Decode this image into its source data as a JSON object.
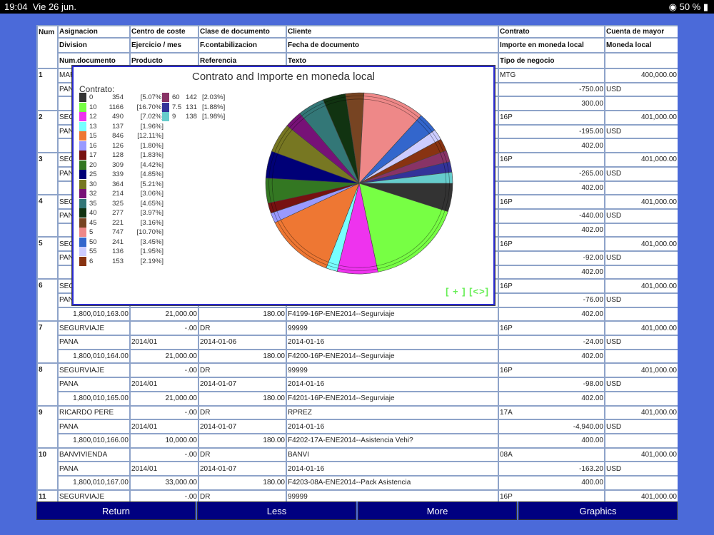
{
  "status": {
    "time": "19:04",
    "date": "Vie 26 jun.",
    "battery": "50 %"
  },
  "headers": [
    [
      "Num",
      "Asignacion",
      "Centro de coste",
      "Clase de documento",
      "Cliente",
      "Contrato",
      "Cuenta de mayor"
    ],
    [
      "",
      "Division",
      "Ejercicio / mes",
      "F.contabilizacion",
      "Fecha de documento",
      "Importe en moneda local",
      "Moneda local"
    ],
    [
      "",
      "Num.documento",
      "Producto",
      "Referencia",
      "Texto",
      "Tipo de negocio",
      ""
    ]
  ],
  "records": [
    {
      "num": "1",
      "rows": [
        [
          "MAR",
          "",
          "",
          "",
          "MTG",
          "400,000.00"
        ],
        [
          "PAN",
          "",
          "",
          "",
          "-750.00",
          "USD"
        ],
        [
          "",
          "",
          "",
          "",
          "300.00",
          ""
        ]
      ]
    },
    {
      "num": "2",
      "rows": [
        [
          "SEG",
          "",
          "",
          "",
          "16P",
          "401,000.00"
        ],
        [
          "PAN",
          "",
          "",
          "",
          "-195.00",
          "USD"
        ],
        [
          "",
          "",
          "",
          "",
          "402.00",
          ""
        ]
      ]
    },
    {
      "num": "3",
      "rows": [
        [
          "SEG",
          "",
          "",
          "",
          "16P",
          "401,000.00"
        ],
        [
          "PAN",
          "",
          "",
          "",
          "-265.00",
          "USD"
        ],
        [
          "",
          "",
          "",
          "",
          "402.00",
          ""
        ]
      ]
    },
    {
      "num": "4",
      "rows": [
        [
          "SEG",
          "",
          "",
          "",
          "16P",
          "401,000.00"
        ],
        [
          "PAN",
          "",
          "",
          "",
          "-440.00",
          "USD"
        ],
        [
          "",
          "",
          "",
          "",
          "402.00",
          ""
        ]
      ]
    },
    {
      "num": "5",
      "rows": [
        [
          "SEG",
          "",
          "",
          "",
          "16P",
          "401,000.00"
        ],
        [
          "PAN",
          "",
          "",
          "",
          "-92.00",
          "USD"
        ],
        [
          "",
          "",
          "",
          "",
          "402.00",
          ""
        ]
      ]
    },
    {
      "num": "6",
      "rows": [
        [
          "SEG",
          "",
          "",
          "",
          "16P",
          "401,000.00"
        ],
        [
          "PAN",
          "",
          "",
          "",
          "-76.00",
          "USD"
        ],
        [
          "1,800,010,163.00",
          "21,000.00",
          "180.00",
          "F4199-16P-ENE2014--Segurviaje",
          "402.00",
          ""
        ]
      ]
    },
    {
      "num": "7",
      "rows": [
        [
          "SEGURVIAJE",
          "-.00",
          "DR",
          "99999",
          "16P",
          "401,000.00"
        ],
        [
          "PANA",
          "2014/01",
          "2014-01-06",
          "2014-01-16",
          "-24.00",
          "USD"
        ],
        [
          "1,800,010,164.00",
          "21,000.00",
          "180.00",
          "F4200-16P-ENE2014--Segurviaje",
          "402.00",
          ""
        ]
      ]
    },
    {
      "num": "8",
      "rows": [
        [
          "SEGURVIAJE",
          "-.00",
          "DR",
          "99999",
          "16P",
          "401,000.00"
        ],
        [
          "PANA",
          "2014/01",
          "2014-01-07",
          "2014-01-16",
          "-98.00",
          "USD"
        ],
        [
          "1,800,010,165.00",
          "21,000.00",
          "180.00",
          "F4201-16P-ENE2014--Segurviaje",
          "402.00",
          ""
        ]
      ]
    },
    {
      "num": "9",
      "rows": [
        [
          "RICARDO PERE",
          "-.00",
          "DR",
          "RPREZ",
          "17A",
          "401,000.00"
        ],
        [
          "PANA",
          "2014/01",
          "2014-01-07",
          "2014-01-16",
          "-4,940.00",
          "USD"
        ],
        [
          "1,800,010,166.00",
          "10,000.00",
          "180.00",
          "F4202-17A-ENE2014--Asistencia Vehi?",
          "400.00",
          ""
        ]
      ]
    },
    {
      "num": "10",
      "rows": [
        [
          "BANVIVIENDA",
          "-.00",
          "DR",
          "BANVI",
          "08A",
          "401,000.00"
        ],
        [
          "PANA",
          "2014/01",
          "2014-01-07",
          "2014-01-16",
          "-163.20",
          "USD"
        ],
        [
          "1,800,010,167.00",
          "33,000.00",
          "180.00",
          "F4203-08A-ENE2014--Pack Asistencia",
          "400.00",
          ""
        ]
      ]
    },
    {
      "num": "11",
      "rows": [
        [
          "SEGURVIAJE",
          "-.00",
          "DR",
          "99999",
          "16P",
          "401,000.00"
        ]
      ]
    }
  ],
  "buttons": [
    "Return",
    "Less",
    "More",
    "Graphics"
  ],
  "chart_data": {
    "type": "pie",
    "title": "Contrato and Importe en moneda local",
    "legend_title": "Contrato:",
    "controls": "[ + ] [<>]",
    "slices": [
      {
        "label": "0",
        "value": 354,
        "pct": "[5.07%]",
        "color": "#333333"
      },
      {
        "label": "10",
        "value": 1166,
        "pct": "[16.70%]",
        "color": "#77ff44"
      },
      {
        "label": "12",
        "value": 490,
        "pct": "[7.02%]",
        "color": "#ee33ee"
      },
      {
        "label": "13",
        "value": 137,
        "pct": "[1.96%]",
        "color": "#77ffff"
      },
      {
        "label": "15",
        "value": 846,
        "pct": "[12.11%]",
        "color": "#ee7733"
      },
      {
        "label": "16",
        "value": 126,
        "pct": "[1.80%]",
        "color": "#9999ff"
      },
      {
        "label": "17",
        "value": 128,
        "pct": "[1.83%]",
        "color": "#771111"
      },
      {
        "label": "20",
        "value": 309,
        "pct": "[4.42%]",
        "color": "#337722"
      },
      {
        "label": "25",
        "value": 339,
        "pct": "[4.85%]",
        "color": "#000077"
      },
      {
        "label": "30",
        "value": 364,
        "pct": "[5.21%]",
        "color": "#777722"
      },
      {
        "label": "32",
        "value": 214,
        "pct": "[3.06%]",
        "color": "#771177"
      },
      {
        "label": "35",
        "value": 325,
        "pct": "[4.65%]",
        "color": "#337777"
      },
      {
        "label": "40",
        "value": 277,
        "pct": "[3.97%]",
        "color": "#113311"
      },
      {
        "label": "45",
        "value": 221,
        "pct": "[3.16%]",
        "color": "#774422"
      },
      {
        "label": "5",
        "value": 747,
        "pct": "[10.70%]",
        "color": "#ee8888"
      },
      {
        "label": "50",
        "value": 241,
        "pct": "[3.45%]",
        "color": "#3366cc"
      },
      {
        "label": "55",
        "value": 136,
        "pct": "[1.95%]",
        "color": "#ccccff"
      },
      {
        "label": "6",
        "value": 153,
        "pct": "[2.19%]",
        "color": "#883311"
      },
      {
        "label": "60",
        "value": 142,
        "pct": "[2.03%]",
        "color": "#883366"
      },
      {
        "label": "7.5",
        "value": 131,
        "pct": "[1.88%]",
        "color": "#333399"
      },
      {
        "label": "9",
        "value": 138,
        "pct": "[1.98%]",
        "color": "#66cccc"
      }
    ]
  }
}
